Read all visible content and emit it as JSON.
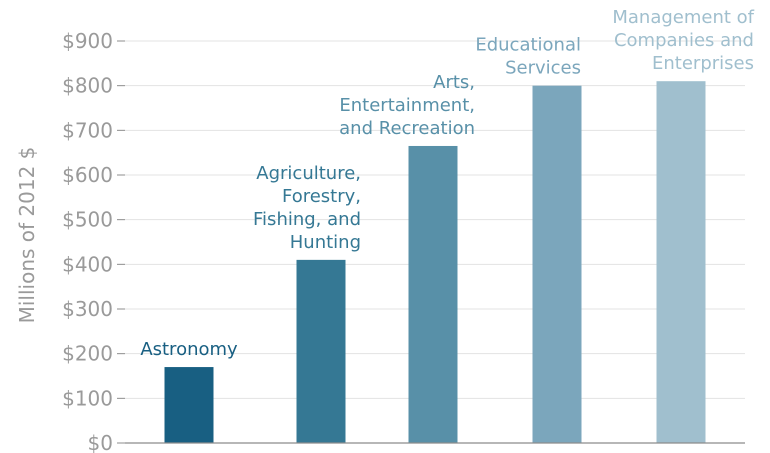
{
  "chart_data": {
    "type": "bar",
    "title": "",
    "xlabel": "",
    "ylabel": "Millions of 2012 $",
    "ylim": [
      0,
      900
    ],
    "y_ticks": [
      "$0",
      "$100",
      "$200",
      "$300",
      "$400",
      "$500",
      "$600",
      "$700",
      "$800",
      "$900"
    ],
    "y_tick_values": [
      0,
      100,
      200,
      300,
      400,
      500,
      600,
      700,
      800,
      900
    ],
    "grid": true,
    "legend": "none",
    "categories": [
      "Astronomy",
      "Agriculture, Forestry, Fishing, and Hunting",
      "Arts, Entertainment, and Recreation",
      "Educational Services",
      "Management of Companies and Enterprises"
    ],
    "values": [
      170,
      410,
      665,
      800,
      810
    ],
    "bar_labels": [
      [
        "Astronomy"
      ],
      [
        "Agriculture,",
        "Forestry,",
        "Fishing, and",
        "Hunting"
      ],
      [
        "Arts,",
        "Entertainment,",
        "and Recreation"
      ],
      [
        "Educational",
        "Services"
      ],
      [
        "Management of",
        "Companies and",
        "Enterprises"
      ]
    ],
    "colors": [
      "#185f82",
      "#357894",
      "#5890a8",
      "#7ba6bc",
      "#a0bfce"
    ],
    "label_colors": [
      "#185f82",
      "#357894",
      "#5890a8",
      "#7ba6bc",
      "#a0bfce"
    ],
    "grid_color": "#e3e3e3",
    "axis_color": "#8c8c8c",
    "tick_color": "#9a9a9a"
  }
}
